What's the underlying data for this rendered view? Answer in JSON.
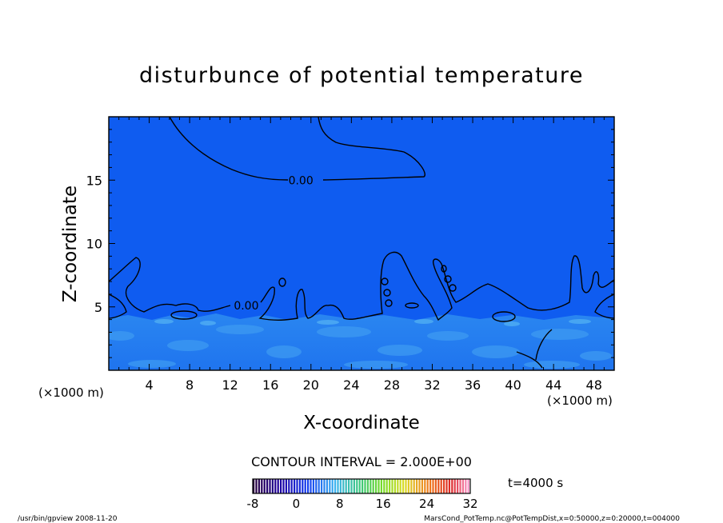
{
  "chart_data": {
    "type": "heatmap",
    "title": "disturbunce of potential temperature",
    "xlabel": "X-coordinate",
    "ylabel": "Z-coordinate",
    "x_unit": "(×1000 m)",
    "y_unit": "(×1000 m)",
    "xlim": [
      0,
      50
    ],
    "ylim": [
      0,
      20
    ],
    "x_ticks": [
      4,
      8,
      12,
      16,
      20,
      24,
      28,
      32,
      36,
      40,
      44,
      48
    ],
    "y_ticks": [
      5,
      10,
      15
    ],
    "contour_labels": [
      {
        "text": "0.00",
        "x": 19.0,
        "z": 15.0
      },
      {
        "text": "0.00",
        "x": 13.6,
        "z": 5.1
      }
    ],
    "contour_interval": "CONTOUR INTERVAL = 2.000E+00",
    "time_label": "t=4000 s",
    "colorbar": {
      "min": -8,
      "max": 32,
      "ticks": [
        "-8",
        "0",
        "8",
        "16",
        "24",
        "32"
      ]
    },
    "colors": {
      "field_base": "#0f5cf0",
      "field_light": "#2d8ef0",
      "field_lighter": "#3f9cf2"
    },
    "footer_left": "/usr/bin/gpview   2008-11-20",
    "footer_right": "MarsCond_PotTemp.nc@PotTempDist,x=0:50000,z=0:20000,t=004000"
  }
}
